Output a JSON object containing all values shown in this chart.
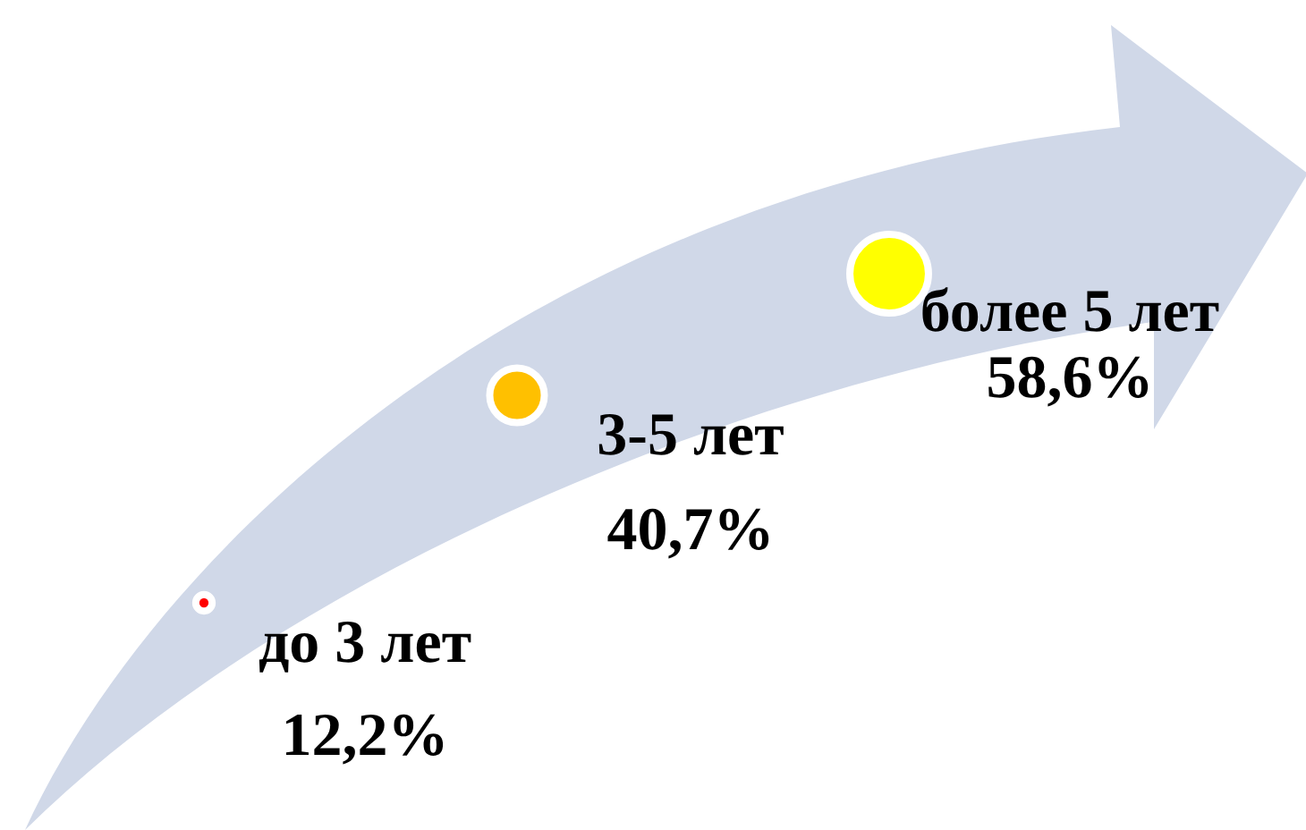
{
  "chart_data": {
    "type": "other",
    "categories": [
      "до 3 лет",
      "3-5 лет",
      "более 5 лет"
    ],
    "values": [
      12.2,
      40.7,
      58.6
    ],
    "colors": [
      "#ff0000",
      "#ffc000",
      "#ffff00"
    ],
    "value_labels": [
      "12,2%",
      "40,7%",
      "58,6%"
    ]
  }
}
